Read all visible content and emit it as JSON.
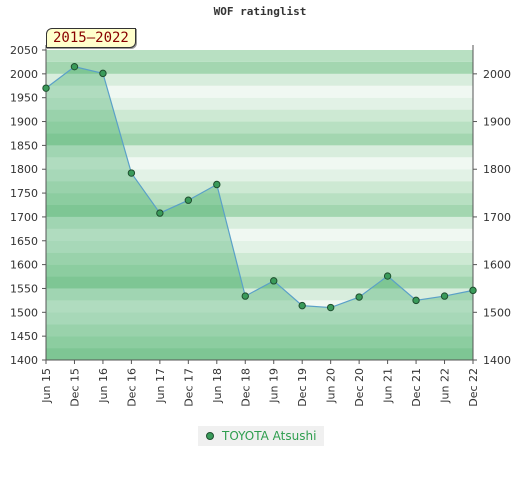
{
  "chart_data": {
    "type": "area",
    "title": "WOF ratinglist",
    "badge": "2015–2022",
    "x": [
      "Jun 15",
      "Dec 15",
      "Jun 16",
      "Dec 16",
      "Jun 17",
      "Dec 17",
      "Jun 18",
      "Dec 18",
      "Jun 19",
      "Dec 19",
      "Jun 20",
      "Dec 20",
      "Jun 21",
      "Dec 21",
      "Jun 22",
      "Dec 22"
    ],
    "series": [
      {
        "name": "TOYOTA Atsushi",
        "values": [
          1970,
          2015,
          2001,
          1792,
          1708,
          1735,
          1768,
          1534,
          1566,
          1514,
          1510,
          1532,
          1576,
          1525,
          1534,
          1546
        ]
      }
    ],
    "ylim": [
      1400,
      2050
    ],
    "left_ticks": [
      1400,
      1450,
      1500,
      1550,
      1600,
      1650,
      1700,
      1750,
      1800,
      1850,
      1900,
      1950,
      2000,
      2050
    ],
    "right_ticks": [
      1400,
      1500,
      1600,
      1700,
      1800,
      1900,
      2000
    ],
    "legend_position": "bottom-center",
    "colors": {
      "line": "#5aa0c8",
      "marker": "#3a9b5a",
      "legend_text": "#2e9e4e",
      "badge_text": "#880000"
    }
  }
}
